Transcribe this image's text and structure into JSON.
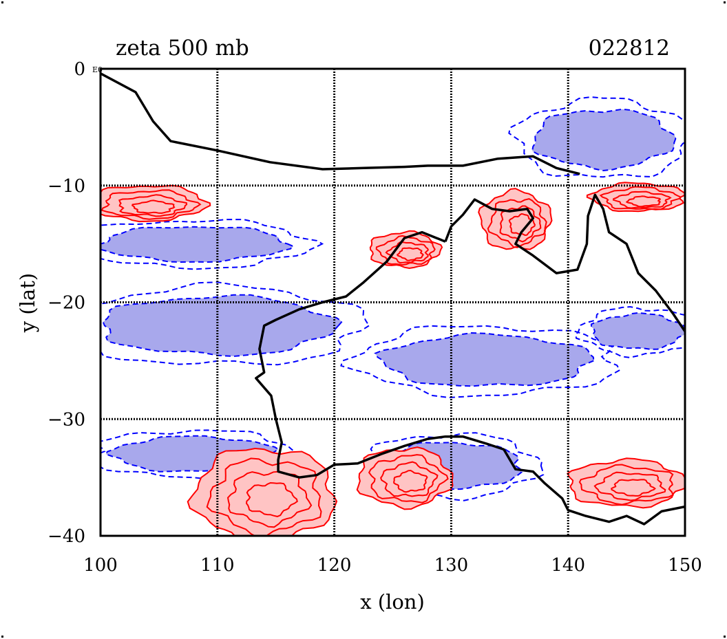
{
  "chart_data": {
    "type": "map",
    "title": "zeta 500 mb",
    "timestamp": "022812",
    "xlabel": "x (lon)",
    "ylabel": "y (lat)",
    "xlim": [
      100,
      150
    ],
    "ylim": [
      -40,
      0
    ],
    "xticks": [
      100,
      110,
      120,
      130,
      140,
      150
    ],
    "yticks": [
      0,
      -10,
      -20,
      -30,
      -40
    ],
    "ytick_labels": [
      "0",
      "−10",
      "−20",
      "−30",
      "−40"
    ],
    "xtick_labels": [
      "100",
      "110",
      "120",
      "130",
      "140",
      "150"
    ],
    "corner_marker": "E0",
    "grid": true,
    "colors": {
      "positive": "#ff0000",
      "positive_fill": "#ffc4c4",
      "negative": "#0000ff",
      "negative_fill": "#a8a8ec",
      "coast": "#000000"
    },
    "coastline": [
      [
        100,
        -0.4
      ],
      [
        103,
        -2
      ],
      [
        104.5,
        -4.5
      ],
      [
        106,
        -6.2
      ],
      [
        110,
        -7
      ],
      [
        114.5,
        -8
      ],
      [
        119,
        -8.6
      ],
      [
        122.5,
        -8.5
      ],
      [
        126,
        -8.4
      ],
      [
        128,
        -8.3
      ],
      [
        131,
        -8.3
      ],
      [
        134,
        -7.7
      ],
      [
        137,
        -7.5
      ],
      [
        139,
        -8.5
      ],
      [
        141,
        -9
      ]
    ],
    "australia_coast": [
      [
        129.5,
        -14.8
      ],
      [
        130,
        -13.5
      ],
      [
        131,
        -12.5
      ],
      [
        132,
        -11.2
      ],
      [
        133.5,
        -12
      ],
      [
        135,
        -12.2
      ],
      [
        136.5,
        -12
      ],
      [
        137,
        -12.8
      ],
      [
        136,
        -14
      ],
      [
        135.5,
        -15
      ],
      [
        137,
        -16
      ],
      [
        139,
        -17.5
      ],
      [
        140.8,
        -17.2
      ],
      [
        141.6,
        -15
      ],
      [
        141.7,
        -12.6
      ],
      [
        142.3,
        -10.8
      ],
      [
        143,
        -12
      ],
      [
        143.5,
        -14
      ],
      [
        145,
        -15
      ],
      [
        146,
        -17.5
      ],
      [
        147.5,
        -19
      ],
      [
        149,
        -21
      ],
      [
        150,
        -22.5
      ]
    ],
    "australia_west": [
      [
        129.5,
        -14.8
      ],
      [
        127.5,
        -14
      ],
      [
        126,
        -14.5
      ],
      [
        124.5,
        -16.5
      ],
      [
        122.5,
        -18.3
      ],
      [
        121,
        -19.5
      ],
      [
        119,
        -20
      ],
      [
        117,
        -20.6
      ],
      [
        115,
        -21.5
      ],
      [
        114,
        -22
      ],
      [
        113.6,
        -24
      ],
      [
        114,
        -26
      ],
      [
        113.3,
        -26.5
      ],
      [
        114.6,
        -28
      ],
      [
        115,
        -30
      ],
      [
        115.5,
        -32
      ],
      [
        115.2,
        -33.5
      ],
      [
        115.2,
        -34.5
      ],
      [
        117,
        -35
      ],
      [
        118.5,
        -34.8
      ],
      [
        120,
        -33.9
      ],
      [
        122,
        -33.8
      ],
      [
        124,
        -33
      ],
      [
        126,
        -32.3
      ],
      [
        128,
        -31.7
      ],
      [
        129.5,
        -31.5
      ],
      [
        131,
        -31.5
      ],
      [
        133,
        -32.1
      ],
      [
        134.5,
        -32.6
      ],
      [
        135.5,
        -34.3
      ],
      [
        137,
        -34.5
      ],
      [
        138,
        -35.5
      ],
      [
        139.5,
        -36.8
      ],
      [
        140,
        -37.8
      ],
      [
        141.5,
        -38.3
      ],
      [
        143.5,
        -38.8
      ],
      [
        145,
        -38.3
      ],
      [
        146.5,
        -39
      ],
      [
        148,
        -37.9
      ],
      [
        150,
        -37.5
      ]
    ],
    "positive_regions": [
      {
        "label": "west-pacific-band",
        "lon": 104,
        "lat": -11.5,
        "rx": 5,
        "ry": 1.5
      },
      {
        "label": "nw-shelf-band",
        "lon": 126,
        "lat": -15.5,
        "rx": 3,
        "ry": 1.5
      },
      {
        "label": "gulf-carpentaria-spiral",
        "lon": 135.5,
        "lat": -13,
        "rx": 3,
        "ry": 2.5
      },
      {
        "label": "coral-sea-band",
        "lon": 146,
        "lat": -11,
        "rx": 4,
        "ry": 1.2
      },
      {
        "label": "south-west-cyclone",
        "lon": 114,
        "lat": -36.5,
        "rx": 6,
        "ry": 4
      },
      {
        "label": "bight-band",
        "lon": 126,
        "lat": -35,
        "rx": 4,
        "ry": 2.5
      },
      {
        "label": "tasman-band",
        "lon": 145,
        "lat": -35.5,
        "rx": 5,
        "ry": 2
      }
    ],
    "negative_regions": [
      {
        "label": "indian-ocean-band-upper",
        "lon": 108,
        "lat": -15,
        "rx": 8,
        "ry": 1.5
      },
      {
        "label": "indian-ocean-band-mid",
        "lon": 110,
        "lat": -22,
        "rx": 10,
        "ry": 2.5
      },
      {
        "label": "central-australia-band",
        "lon": 133,
        "lat": -25,
        "rx": 9,
        "ry": 2.2
      },
      {
        "label": "great-bight-band",
        "lon": 130,
        "lat": -34,
        "rx": 6,
        "ry": 2
      },
      {
        "label": "new-guinea-band",
        "lon": 143,
        "lat": -6,
        "rx": 6,
        "ry": 2.5
      },
      {
        "label": "coral-sea-negative",
        "lon": 146,
        "lat": -22.5,
        "rx": 4,
        "ry": 1.5
      },
      {
        "label": "southern-ocean-band",
        "lon": 108,
        "lat": -33,
        "rx": 7,
        "ry": 1.5
      }
    ]
  }
}
